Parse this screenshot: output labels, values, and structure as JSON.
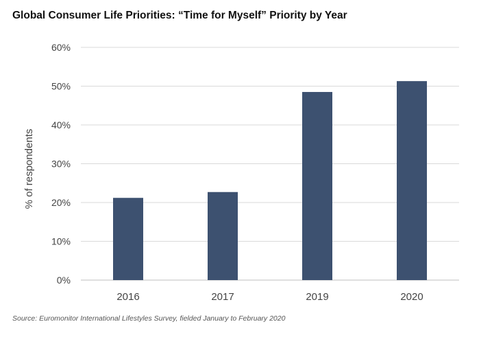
{
  "title": "Global Consumer Life Priorities: “Time for Myself” Priority by Year",
  "source": "Source: Euromonitor International Lifestyles Survey, fielded January to February 2020",
  "colors": {
    "bar": "#3d5170",
    "grid": "#d9d9d9"
  },
  "chart_data": {
    "type": "bar",
    "categories": [
      "2016",
      "2017",
      "2019",
      "2020"
    ],
    "values": [
      21.2,
      22.7,
      48.5,
      51.3
    ],
    "ylabel": "% of respondents",
    "xlabel": "",
    "ylim": [
      0,
      60
    ],
    "yticks": [
      0,
      10,
      20,
      30,
      40,
      50,
      60
    ],
    "ytick_labels": [
      "0%",
      "10%",
      "20%",
      "30%",
      "40%",
      "50%",
      "60%"
    ],
    "grid": true,
    "legend": "none"
  }
}
